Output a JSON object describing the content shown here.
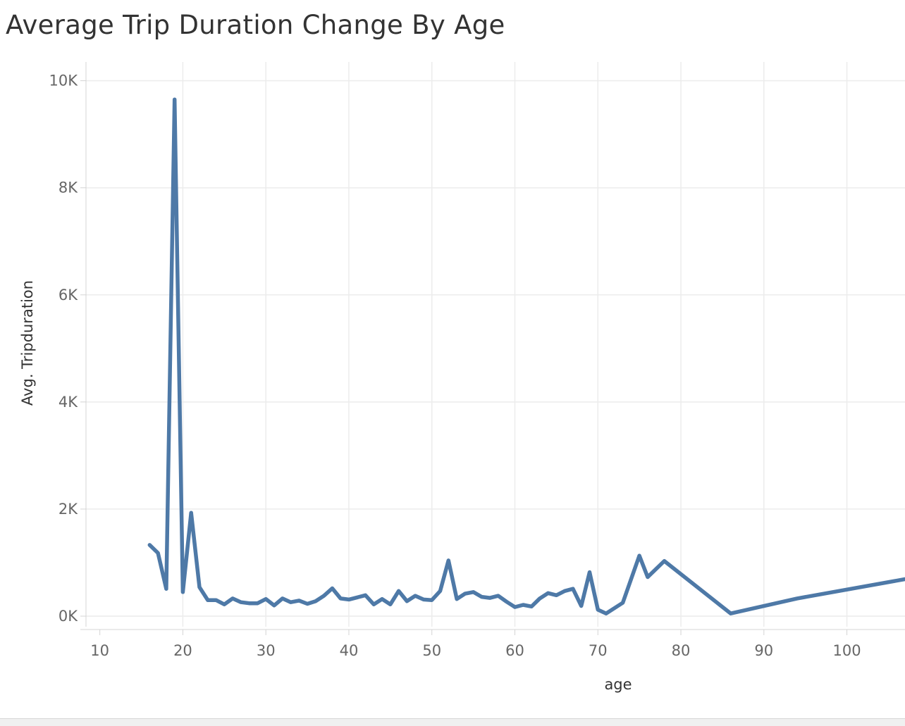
{
  "chart_data": {
    "type": "line",
    "title": "Average Trip Duration Change By Age",
    "xlabel": "age",
    "ylabel": "Avg. Tripduration",
    "xlim": [
      8.5,
      107
    ],
    "ylim": [
      -250,
      10350
    ],
    "x_ticks": [
      10,
      20,
      30,
      40,
      50,
      60,
      70,
      80,
      90,
      100
    ],
    "y_ticks": [
      {
        "value": 0,
        "label": "0K"
      },
      {
        "value": 2000,
        "label": "2K"
      },
      {
        "value": 4000,
        "label": "4K"
      },
      {
        "value": 6000,
        "label": "6K"
      },
      {
        "value": 8000,
        "label": "8K"
      },
      {
        "value": 10000,
        "label": "10K"
      }
    ],
    "grid": true,
    "color": "#4e79a7",
    "series": [
      {
        "x": [
          16,
          17,
          18,
          19,
          20,
          21,
          22,
          23,
          24,
          25,
          26,
          27,
          28,
          29,
          30,
          31,
          32,
          33,
          34,
          35,
          36,
          37,
          38,
          39,
          40,
          41,
          42,
          43,
          44,
          45,
          46,
          47,
          48,
          49,
          50,
          51,
          52,
          53,
          54,
          55,
          56,
          57,
          58,
          59,
          60,
          61,
          62,
          63,
          64,
          65,
          66,
          67,
          68,
          69,
          70,
          71,
          73,
          75,
          76,
          78,
          86,
          94,
          107
        ],
        "y": [
          1330,
          1180,
          510,
          9650,
          450,
          1930,
          540,
          300,
          300,
          220,
          330,
          260,
          240,
          240,
          320,
          200,
          330,
          260,
          290,
          230,
          280,
          380,
          520,
          330,
          310,
          350,
          390,
          220,
          320,
          220,
          470,
          280,
          380,
          310,
          300,
          470,
          1040,
          320,
          420,
          450,
          360,
          340,
          380,
          270,
          170,
          210,
          180,
          330,
          430,
          390,
          470,
          510,
          190,
          820,
          120,
          50,
          250,
          1130,
          730,
          1030,
          50,
          330,
          690
        ]
      }
    ]
  }
}
